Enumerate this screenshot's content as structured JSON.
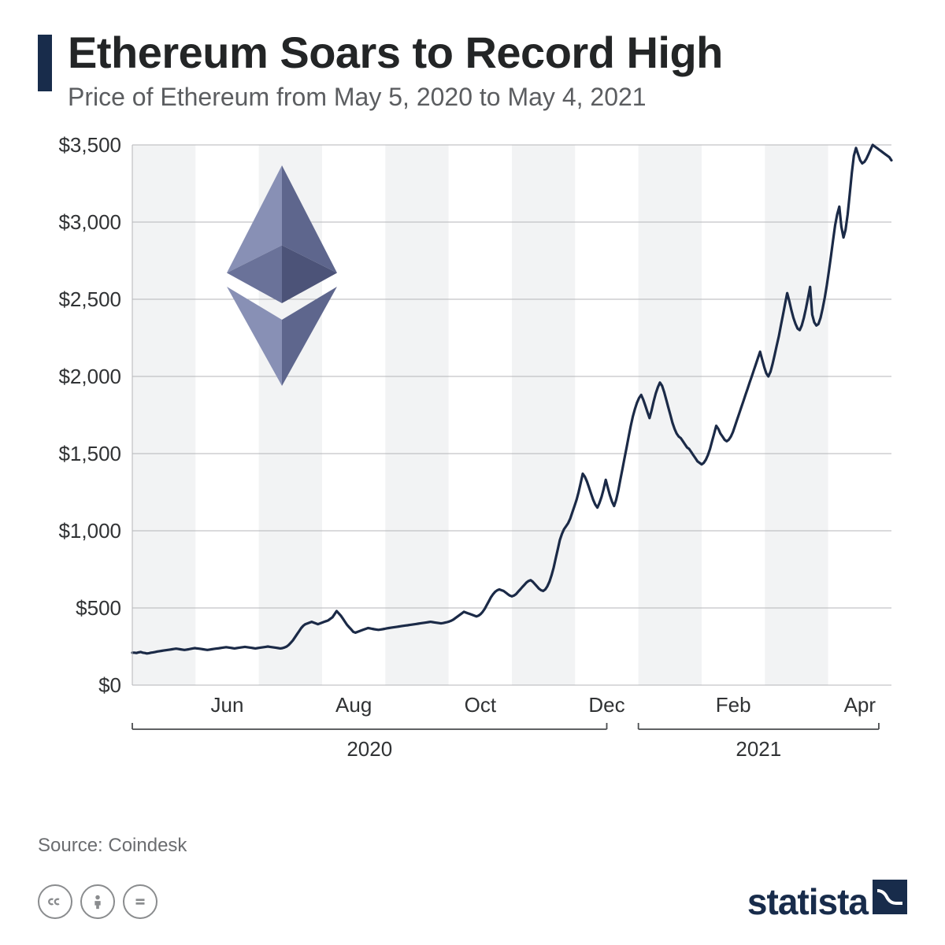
{
  "header": {
    "title": "Ethereum Soars to Record High",
    "subtitle": "Price of Ethereum from May 5, 2020 to May 4, 2021",
    "accent_color": "#182c4b",
    "title_color": "#232526",
    "title_fontsize": 56,
    "subtitle_color": "#5b5d60",
    "subtitle_fontsize": 32
  },
  "chart": {
    "type": "line",
    "background_color": "#ffffff",
    "band_colors": [
      "#f2f3f4",
      "#ffffff"
    ],
    "line_color": "#1b2a47",
    "line_width": 3.2,
    "axis_color": "#4a4c4e",
    "gridline_color": "#b4b6b8",
    "tick_fontsize": 26,
    "tick_color": "#303234",
    "ylim": [
      0,
      3500
    ],
    "ytick_step": 500,
    "ytick_labels": [
      "$0",
      "$500",
      "$1,000",
      "$1,500",
      "$2,000",
      "$2,500",
      "$3,000",
      "$3,500"
    ],
    "x_month_labels": [
      "Jun",
      "Aug",
      "Oct",
      "Dec",
      "Feb",
      "Apr"
    ],
    "x_month_positions": [
      1,
      3,
      5,
      7,
      9,
      11
    ],
    "year_labels": [
      {
        "text": "2020",
        "start_idx": 0,
        "end_idx": 7.5
      },
      {
        "text": "2021",
        "start_idx": 8,
        "end_idx": 11.8
      }
    ],
    "n_points": 365,
    "series": [
      210,
      210,
      208,
      212,
      215,
      210,
      208,
      205,
      207,
      210,
      212,
      215,
      218,
      220,
      222,
      224,
      226,
      228,
      230,
      232,
      234,
      236,
      234,
      232,
      230,
      228,
      230,
      232,
      235,
      238,
      240,
      238,
      236,
      234,
      232,
      230,
      228,
      230,
      232,
      234,
      236,
      238,
      240,
      242,
      244,
      246,
      244,
      242,
      240,
      238,
      240,
      242,
      244,
      246,
      248,
      246,
      244,
      242,
      240,
      238,
      240,
      242,
      244,
      246,
      248,
      250,
      248,
      246,
      244,
      242,
      240,
      238,
      240,
      244,
      250,
      260,
      275,
      290,
      310,
      330,
      350,
      370,
      385,
      395,
      400,
      405,
      410,
      405,
      400,
      395,
      400,
      405,
      410,
      415,
      420,
      430,
      440,
      460,
      480,
      465,
      450,
      430,
      410,
      390,
      375,
      360,
      345,
      340,
      345,
      350,
      355,
      360,
      365,
      370,
      368,
      365,
      362,
      360,
      358,
      360,
      362,
      365,
      368,
      370,
      372,
      374,
      376,
      378,
      380,
      382,
      384,
      386,
      388,
      390,
      392,
      394,
      396,
      398,
      400,
      402,
      404,
      406,
      408,
      410,
      408,
      406,
      404,
      402,
      400,
      402,
      405,
      408,
      412,
      418,
      425,
      435,
      445,
      455,
      465,
      475,
      470,
      465,
      460,
      455,
      450,
      445,
      450,
      460,
      475,
      495,
      520,
      545,
      570,
      590,
      605,
      615,
      620,
      615,
      610,
      600,
      590,
      580,
      575,
      580,
      590,
      605,
      620,
      635,
      650,
      665,
      675,
      680,
      670,
      655,
      640,
      625,
      615,
      610,
      620,
      640,
      670,
      710,
      760,
      820,
      880,
      940,
      980,
      1010,
      1030,
      1050,
      1080,
      1120,
      1160,
      1200,
      1250,
      1310,
      1370,
      1350,
      1320,
      1280,
      1240,
      1200,
      1170,
      1150,
      1180,
      1220,
      1270,
      1330,
      1280,
      1230,
      1190,
      1160,
      1200,
      1260,
      1330,
      1400,
      1470,
      1540,
      1610,
      1680,
      1740,
      1790,
      1830,
      1860,
      1880,
      1850,
      1810,
      1770,
      1730,
      1780,
      1840,
      1890,
      1930,
      1960,
      1940,
      1900,
      1850,
      1800,
      1750,
      1700,
      1660,
      1630,
      1610,
      1600,
      1580,
      1560,
      1540,
      1530,
      1510,
      1490,
      1470,
      1450,
      1440,
      1430,
      1440,
      1460,
      1490,
      1530,
      1580,
      1630,
      1680,
      1660,
      1630,
      1610,
      1590,
      1580,
      1590,
      1610,
      1640,
      1680,
      1720,
      1760,
      1800,
      1840,
      1880,
      1920,
      1960,
      2000,
      2040,
      2080,
      2120,
      2160,
      2110,
      2060,
      2020,
      2000,
      2030,
      2080,
      2140,
      2200,
      2260,
      2330,
      2400,
      2470,
      2540,
      2490,
      2430,
      2380,
      2340,
      2310,
      2300,
      2330,
      2380,
      2440,
      2510,
      2580,
      2400,
      2350,
      2330,
      2340,
      2380,
      2440,
      2510,
      2590,
      2680,
      2780,
      2880,
      2980,
      3050,
      3100,
      2970,
      2900,
      2950,
      3050,
      3180,
      3320,
      3430,
      3480,
      3440,
      3400,
      3380,
      3390,
      3410,
      3440,
      3470,
      3500,
      3490,
      3480,
      3470,
      3460,
      3450,
      3440,
      3430,
      3420,
      3400
    ]
  },
  "logo": {
    "colors": {
      "top_left": "#8890b5",
      "top_right": "#5e668d",
      "mid_left": "#6a7299",
      "mid_right": "#4c5378",
      "bot_left": "#8890b5",
      "bot_right": "#5e668d"
    }
  },
  "source": {
    "label": "Source: Coindesk",
    "color": "#6b6d70",
    "fontsize": 24
  },
  "footer": {
    "cc": [
      "cc",
      "by",
      "nd"
    ],
    "brand": "statista",
    "brand_color": "#182c4b"
  }
}
